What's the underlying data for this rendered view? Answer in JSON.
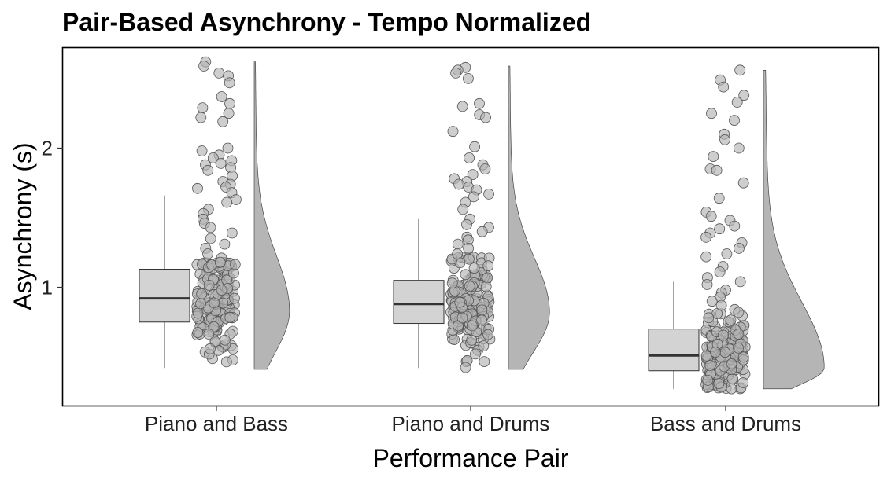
{
  "chart_data": {
    "type": "raincloud",
    "title": "Pair-Based Asynchrony - Tempo Normalized",
    "xlabel": "Performance Pair",
    "ylabel": "Asynchrony (s)",
    "ylim": [
      0.15,
      2.72
    ],
    "yticks": [
      1,
      2
    ],
    "categories": [
      "Piano and Bass",
      "Piano and Drums",
      "Bass and Drums"
    ],
    "groups": [
      {
        "name": "Piano and Bass",
        "box": {
          "min": 0.42,
          "q1": 0.75,
          "median": 0.92,
          "q3": 1.13,
          "max": 1.66
        },
        "range": [
          0.41,
          2.62
        ],
        "mode": 0.83,
        "peak_density": 0.43,
        "outliers": [
          2.62,
          2.59,
          2.54,
          2.52,
          2.47,
          2.37,
          2.32,
          2.29,
          2.25,
          2.22,
          2.19,
          2.0,
          1.98,
          1.95,
          1.93,
          1.91,
          1.89,
          1.88,
          1.86,
          1.84,
          1.8,
          1.76,
          1.74,
          1.72,
          1.71,
          1.68,
          1.63,
          1.61,
          1.56,
          1.53,
          1.49,
          1.46,
          1.43,
          1.39,
          1.35,
          1.31,
          1.28,
          1.24,
          1.21,
          1.18
        ],
        "cluster": {
          "n": 170,
          "low": 0.42,
          "high": 1.18,
          "mean": 0.9,
          "spread": 0.2
        }
      },
      {
        "name": "Piano and Drums",
        "box": {
          "min": 0.42,
          "q1": 0.74,
          "median": 0.88,
          "q3": 1.05,
          "max": 1.49
        },
        "range": [
          0.41,
          2.59
        ],
        "mode": 0.82,
        "peak_density": 0.5,
        "outliers": [
          2.58,
          2.56,
          2.54,
          2.5,
          2.32,
          2.3,
          2.24,
          2.22,
          2.12,
          2.01,
          1.93,
          1.88,
          1.85,
          1.81,
          1.78,
          1.76,
          1.74,
          1.72,
          1.7,
          1.67,
          1.65,
          1.61,
          1.56,
          1.49,
          1.45,
          1.43,
          1.4,
          1.36,
          1.34,
          1.31,
          1.28,
          1.24
        ],
        "cluster": {
          "n": 170,
          "low": 0.42,
          "high": 1.22,
          "mean": 0.86,
          "spread": 0.19
        }
      },
      {
        "name": "Bass and Drums",
        "box": {
          "min": 0.27,
          "q1": 0.4,
          "median": 0.51,
          "q3": 0.7,
          "max": 1.04
        },
        "range": [
          0.27,
          2.56
        ],
        "mode": 0.42,
        "peak_density": 0.74,
        "outliers": [
          2.56,
          2.49,
          2.44,
          2.38,
          2.33,
          2.25,
          2.2,
          2.1,
          2.06,
          2.0,
          1.94,
          1.85,
          1.84,
          1.75,
          1.64,
          1.54,
          1.51,
          1.48,
          1.44,
          1.42,
          1.39,
          1.36,
          1.32,
          1.28,
          1.24,
          1.22,
          1.15,
          1.11,
          1.07,
          1.04,
          1.02,
          0.98,
          0.96,
          0.93,
          0.9,
          0.87,
          0.84,
          0.82
        ],
        "cluster": {
          "n": 170,
          "low": 0.27,
          "high": 0.82,
          "mean": 0.5,
          "spread": 0.14
        }
      }
    ],
    "colors": {
      "box_fill": "#d3d3d3",
      "point_fill": "#b4b4b4",
      "point_stroke": "#555555",
      "density_fill": "#b5b5b5",
      "median": "#333333"
    }
  }
}
